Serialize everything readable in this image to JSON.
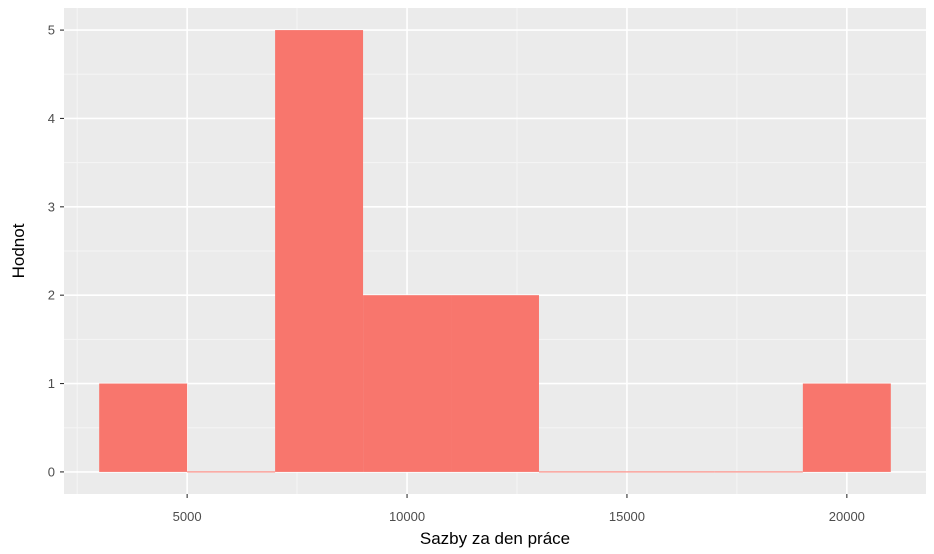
{
  "chart_data": {
    "type": "bar",
    "histogram": true,
    "title": "",
    "xlabel": "Sazby za den práce",
    "ylabel": "Hodnot",
    "bins": [
      {
        "x_start": 3000,
        "x_end": 5000,
        "count": 1
      },
      {
        "x_start": 5000,
        "x_end": 7000,
        "count": 0
      },
      {
        "x_start": 7000,
        "x_end": 9000,
        "count": 5
      },
      {
        "x_start": 9000,
        "x_end": 11000,
        "count": 2
      },
      {
        "x_start": 11000,
        "x_end": 13000,
        "count": 2
      },
      {
        "x_start": 13000,
        "x_end": 15000,
        "count": 0
      },
      {
        "x_start": 15000,
        "x_end": 17000,
        "count": 0
      },
      {
        "x_start": 17000,
        "x_end": 19000,
        "count": 0
      },
      {
        "x_start": 19000,
        "x_end": 21000,
        "count": 1
      }
    ],
    "xlim": [
      2200,
      21800
    ],
    "ylim": [
      -0.25,
      5.25
    ],
    "x_ticks": [
      5000,
      10000,
      15000,
      20000
    ],
    "x_tick_labels": [
      "5000",
      "10000",
      "15000",
      "20000"
    ],
    "y_ticks": [
      0,
      1,
      2,
      3,
      4,
      5
    ],
    "y_tick_labels": [
      "0",
      "1",
      "2",
      "3",
      "4",
      "5"
    ],
    "grid": true,
    "legend": "none",
    "colors": {
      "bar_fill": "#F8766D",
      "panel_background": "#EBEBEB",
      "grid_major": "#FFFFFF",
      "grid_minor": "#F5F5F5",
      "tick_text": "#4D4D4D",
      "axis_title": "#000000"
    }
  }
}
